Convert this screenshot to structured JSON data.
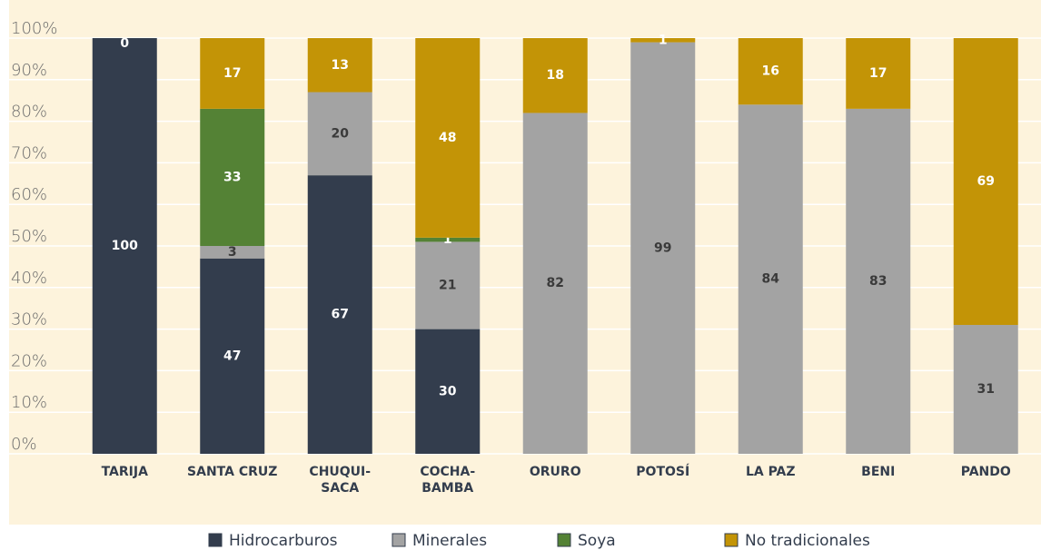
{
  "chart_data": {
    "type": "stacked_bar",
    "categories": [
      "TARIJA",
      "SANTA CRUZ",
      "CHUQUI-\nSACA",
      "COCHA-\nBAMBA",
      "ORURO",
      "POTOSÍ",
      "LA PAZ",
      "BENI",
      "PANDO"
    ],
    "series": [
      {
        "name": "Hidrocarburos",
        "color": "#333d4d",
        "values": [
          100,
          47,
          67,
          30,
          null,
          null,
          null,
          null,
          null
        ]
      },
      {
        "name": "Minerales",
        "color": "#a3a3a3",
        "values": [
          null,
          3,
          20,
          21,
          82,
          99,
          84,
          83,
          31
        ]
      },
      {
        "name": "Soya",
        "color": "#548235",
        "values": [
          null,
          33,
          null,
          1,
          null,
          null,
          null,
          null,
          null
        ]
      },
      {
        "name": "No tradicionales",
        "color": "#c39406",
        "values": [
          0,
          17,
          13,
          48,
          18,
          1,
          16,
          17,
          69
        ]
      }
    ],
    "ylim": [
      0,
      100
    ],
    "yticks": [
      {
        "value": 0,
        "label": "0%"
      },
      {
        "value": 10,
        "label": "10%"
      },
      {
        "value": 20,
        "label": "20%"
      },
      {
        "value": 30,
        "label": "30%"
      },
      {
        "value": 40,
        "label": "40%"
      },
      {
        "value": 50,
        "label": "50%"
      },
      {
        "value": 60,
        "label": "60%"
      },
      {
        "value": 70,
        "label": "70%"
      },
      {
        "value": 80,
        "label": "80%"
      },
      {
        "value": 90,
        "label": "90%"
      },
      {
        "value": 100,
        "label": "100%"
      }
    ],
    "grid": true,
    "legend": "bottom"
  }
}
